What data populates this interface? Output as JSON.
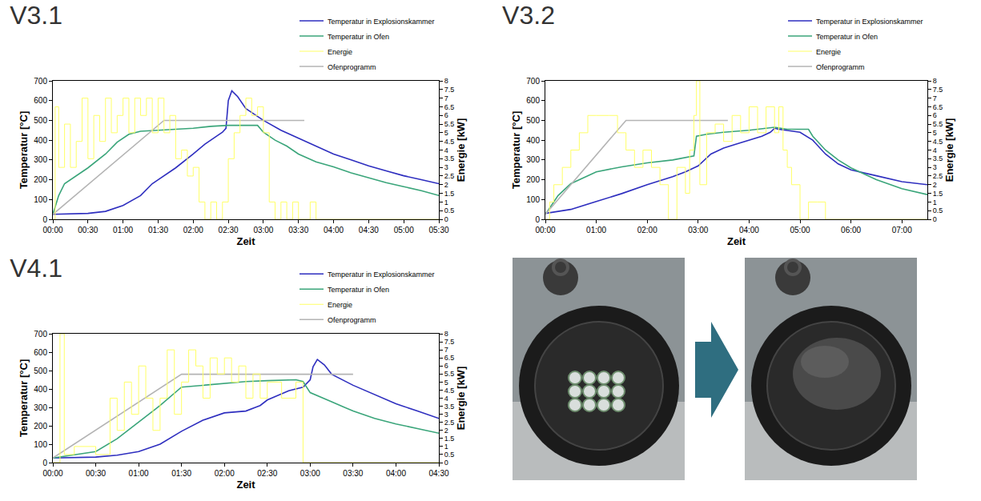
{
  "chart_data": [
    {
      "type": "line",
      "title": "V3.1",
      "x_label": "Zeit",
      "y_label": "Temperatur [°C]",
      "y2_label": "Energie [kW]",
      "xlim": [
        0,
        330
      ],
      "xticks": [
        {
          "value": 0,
          "label": "00:00"
        },
        {
          "value": 30,
          "label": "00:30"
        },
        {
          "value": 60,
          "label": "01:00"
        },
        {
          "value": 90,
          "label": "01:30"
        },
        {
          "value": 120,
          "label": "02:00"
        },
        {
          "value": 150,
          "label": "02:30"
        },
        {
          "value": 180,
          "label": "03:00"
        },
        {
          "value": 210,
          "label": "03:30"
        },
        {
          "value": 240,
          "label": "04:00"
        },
        {
          "value": 270,
          "label": "04:30"
        },
        {
          "value": 300,
          "label": "05:00"
        },
        {
          "value": 330,
          "label": "05:30"
        }
      ],
      "ylim": [
        0,
        700
      ],
      "yticks": [
        0,
        100,
        200,
        300,
        400,
        500,
        600,
        700
      ],
      "y2lim": [
        0,
        8
      ],
      "y2ticks": [
        0,
        0.5,
        1,
        1.5,
        2,
        2.5,
        3,
        3.5,
        4,
        4.5,
        5,
        5.5,
        6,
        6.5,
        7,
        7.5,
        8
      ],
      "grid": false,
      "legend": "top right",
      "series": [
        {
          "name": "Temperatur in Explosionskammer",
          "color": "#2e2ebf",
          "line_style": "solid",
          "x": [
            0,
            30,
            45,
            60,
            75,
            85,
            90,
            105,
            120,
            130,
            140,
            145,
            148,
            150,
            153,
            158,
            165,
            175,
            180,
            195,
            210,
            225,
            240,
            255,
            270,
            285,
            300,
            315,
            330
          ],
          "values": [
            25,
            30,
            40,
            70,
            120,
            180,
            200,
            260,
            330,
            380,
            420,
            440,
            460,
            600,
            650,
            620,
            560,
            520,
            500,
            450,
            410,
            370,
            330,
            300,
            270,
            245,
            220,
            200,
            180
          ]
        },
        {
          "name": "Temperatur in Ofen",
          "color": "#3aa57a",
          "line_style": "solid",
          "x": [
            0,
            5,
            10,
            15,
            30,
            45,
            55,
            65,
            75,
            90,
            105,
            120,
            135,
            150,
            165,
            175,
            180,
            190,
            200,
            210,
            225,
            240,
            255,
            270,
            285,
            300,
            315,
            330
          ],
          "values": [
            25,
            120,
            180,
            200,
            260,
            330,
            390,
            430,
            445,
            450,
            455,
            460,
            470,
            475,
            475,
            475,
            440,
            400,
            370,
            330,
            290,
            265,
            235,
            210,
            185,
            165,
            145,
            120
          ]
        },
        {
          "name": "Energie",
          "color": "#ffff66",
          "line_style": "step",
          "axis": "y2",
          "x": [
            0,
            2,
            5,
            10,
            15,
            20,
            25,
            30,
            35,
            40,
            45,
            50,
            55,
            60,
            65,
            70,
            75,
            80,
            85,
            90,
            95,
            100,
            105,
            110,
            115,
            120,
            125,
            130,
            135,
            140,
            145,
            150,
            155,
            160,
            165,
            170,
            175,
            180,
            185,
            190,
            195,
            200,
            205,
            210,
            220,
            225,
            330
          ],
          "values": [
            0,
            6.5,
            3,
            5.5,
            3,
            4.5,
            7,
            3.5,
            6,
            4.5,
            7,
            5,
            6,
            7,
            5,
            7,
            6,
            7,
            5,
            7,
            5,
            6,
            3.5,
            4,
            2.5,
            3,
            1,
            0,
            1,
            0,
            1,
            3.5,
            5,
            6,
            7,
            6,
            6.5,
            5,
            1,
            0,
            1,
            0,
            1,
            0,
            1,
            0,
            0
          ]
        },
        {
          "name": "Ofenprogramm",
          "color": "#b4b4b4",
          "line_style": "solid",
          "x": [
            0,
            95,
            215
          ],
          "values": [
            25,
            500,
            500
          ]
        }
      ]
    },
    {
      "type": "line",
      "title": "V3.2",
      "x_label": "Zeit",
      "y_label": "Temperatur [°C]",
      "y2_label": "Energie [kW]",
      "xlim": [
        0,
        450
      ],
      "xticks": [
        {
          "value": 0,
          "label": "00:00"
        },
        {
          "value": 60,
          "label": "01:00"
        },
        {
          "value": 120,
          "label": "02:00"
        },
        {
          "value": 180,
          "label": "03:00"
        },
        {
          "value": 240,
          "label": "04:00"
        },
        {
          "value": 300,
          "label": "05:00"
        },
        {
          "value": 360,
          "label": "06:00"
        },
        {
          "value": 420,
          "label": "07:00"
        }
      ],
      "ylim": [
        0,
        700
      ],
      "yticks": [
        0,
        100,
        200,
        300,
        400,
        500,
        600,
        700
      ],
      "y2lim": [
        0,
        8
      ],
      "y2ticks": [
        0,
        0.5,
        1,
        1.5,
        2,
        2.5,
        3,
        3.5,
        4,
        4.5,
        5,
        5.5,
        6,
        6.5,
        7,
        7.5,
        8
      ],
      "grid": false,
      "legend": "top right",
      "series": [
        {
          "name": "Temperatur in Explosionskammer",
          "color": "#2e2ebf",
          "line_style": "solid",
          "x": [
            0,
            30,
            60,
            90,
            120,
            150,
            165,
            180,
            195,
            210,
            225,
            240,
            255,
            265,
            270,
            275,
            285,
            300,
            315,
            330,
            345,
            360,
            390,
            420,
            450
          ],
          "values": [
            30,
            50,
            90,
            130,
            175,
            215,
            240,
            270,
            330,
            360,
            380,
            400,
            420,
            440,
            460,
            455,
            450,
            440,
            400,
            330,
            280,
            250,
            220,
            190,
            175
          ]
        },
        {
          "name": "Temperatur in Ofen",
          "color": "#3aa57a",
          "line_style": "solid",
          "x": [
            0,
            15,
            30,
            45,
            60,
            90,
            120,
            150,
            175,
            178,
            190,
            210,
            240,
            270,
            285,
            300,
            310,
            315,
            330,
            345,
            360,
            390,
            420,
            450
          ],
          "values": [
            25,
            120,
            180,
            210,
            240,
            265,
            285,
            300,
            320,
            420,
            430,
            440,
            450,
            465,
            455,
            455,
            455,
            420,
            350,
            300,
            260,
            200,
            155,
            125
          ]
        },
        {
          "name": "Energie",
          "color": "#ffff66",
          "line_style": "step",
          "axis": "y2",
          "x": [
            0,
            5,
            10,
            20,
            30,
            40,
            50,
            60,
            75,
            85,
            95,
            105,
            115,
            125,
            135,
            145,
            155,
            165,
            170,
            175,
            178,
            182,
            190,
            200,
            210,
            220,
            230,
            240,
            250,
            260,
            270,
            275,
            280,
            285,
            290,
            300,
            310,
            320,
            330,
            450
          ],
          "values": [
            0,
            1,
            2,
            3,
            4,
            5,
            6,
            6,
            6,
            5,
            4,
            3,
            4,
            3,
            2,
            0,
            3,
            1.5,
            4,
            6,
            8,
            2,
            5,
            5.5,
            4.5,
            6,
            5,
            6.5,
            5,
            6.5,
            5,
            6.5,
            4,
            3,
            2,
            0,
            1,
            1,
            0,
            0
          ]
        },
        {
          "name": "Ofenprogramm",
          "color": "#b4b4b4",
          "line_style": "solid",
          "x": [
            0,
            95,
            215
          ],
          "values": [
            25,
            500,
            500
          ]
        }
      ]
    },
    {
      "type": "line",
      "title": "V4.1",
      "x_label": "Zeit",
      "y_label": "Temperatur [°C]",
      "y2_label": "Energie [kW]",
      "xlim": [
        0,
        270
      ],
      "xticks": [
        {
          "value": 0,
          "label": "00:00"
        },
        {
          "value": 30,
          "label": "00:30"
        },
        {
          "value": 60,
          "label": "01:00"
        },
        {
          "value": 90,
          "label": "01:30"
        },
        {
          "value": 120,
          "label": "02:00"
        },
        {
          "value": 150,
          "label": "02:30"
        },
        {
          "value": 180,
          "label": "03:00"
        },
        {
          "value": 210,
          "label": "03:30"
        },
        {
          "value": 240,
          "label": "04:00"
        },
        {
          "value": 270,
          "label": "04:30"
        }
      ],
      "ylim": [
        0,
        700
      ],
      "yticks": [
        0,
        100,
        200,
        300,
        400,
        500,
        600,
        700
      ],
      "y2lim": [
        0,
        8
      ],
      "y2ticks": [
        0,
        0.5,
        1,
        1.5,
        2,
        2.5,
        3,
        3.5,
        4,
        4.5,
        5,
        5.5,
        6,
        6.5,
        7,
        7.5,
        8
      ],
      "grid": false,
      "legend": "top right",
      "series": [
        {
          "name": "Temperatur in Explosionskammer",
          "color": "#2e2ebf",
          "line_style": "solid",
          "x": [
            0,
            30,
            45,
            60,
            75,
            90,
            105,
            120,
            135,
            145,
            150,
            165,
            175,
            180,
            182,
            185,
            190,
            195,
            210,
            225,
            240,
            255,
            270
          ],
          "values": [
            25,
            30,
            40,
            60,
            100,
            170,
            230,
            270,
            280,
            310,
            340,
            390,
            410,
            450,
            520,
            560,
            530,
            480,
            420,
            370,
            320,
            280,
            240
          ]
        },
        {
          "name": "Temperatur in Ofen",
          "color": "#3aa57a",
          "line_style": "solid",
          "x": [
            0,
            30,
            45,
            60,
            75,
            90,
            105,
            120,
            135,
            150,
            170,
            175,
            180,
            195,
            210,
            225,
            240,
            255,
            270
          ],
          "values": [
            25,
            60,
            130,
            220,
            310,
            410,
            420,
            430,
            440,
            445,
            450,
            440,
            380,
            330,
            280,
            240,
            210,
            185,
            160
          ]
        },
        {
          "name": "Energie",
          "color": "#ffff66",
          "line_style": "step",
          "axis": "y2",
          "x": [
            0,
            5,
            8,
            15,
            30,
            40,
            45,
            50,
            55,
            60,
            65,
            70,
            75,
            80,
            85,
            90,
            95,
            100,
            105,
            110,
            115,
            120,
            125,
            130,
            135,
            140,
            145,
            150,
            160,
            170,
            175,
            270
          ],
          "values": [
            0,
            8,
            0.5,
            1,
            0.5,
            4,
            2,
            5,
            3,
            6,
            4,
            2,
            4,
            7,
            3,
            5,
            7,
            6,
            4,
            6.5,
            5.5,
            6.5,
            5,
            6,
            4,
            5.5,
            4,
            5,
            4,
            5,
            0,
            0
          ]
        },
        {
          "name": "Ofenprogramm",
          "color": "#b4b4b4",
          "line_style": "solid",
          "x": [
            0,
            90,
            210
          ],
          "values": [
            25,
            480,
            480
          ]
        }
      ]
    }
  ]
}
